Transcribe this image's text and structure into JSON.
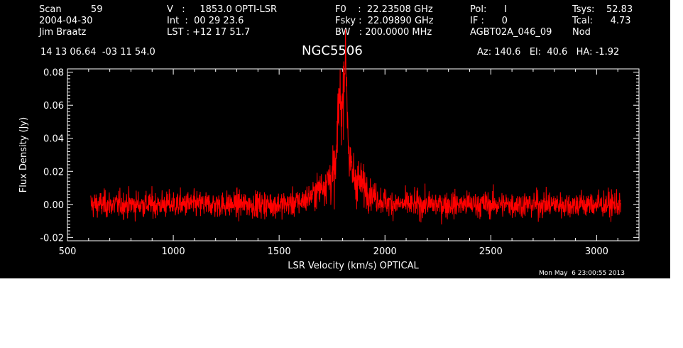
{
  "header": {
    "col1": [
      "Scan          59",
      "2004-04-30",
      "Jim Braatz"
    ],
    "col2": [
      "V   :     1853.0 OPTI-LSR",
      "Int  :  00 29 23.6",
      "LST : +12 17 51.7"
    ],
    "col3": [
      "F0    :  22.23508 GHz",
      "Fsky :  22.09890 GHz",
      "BW   : 200.0000 MHz"
    ],
    "col4": [
      "Pol:      I",
      "IF :      0",
      "AGBT02A_046_09"
    ],
    "col5": [
      "Tsys:    52.83",
      "Tcal:      4.73",
      "Nod"
    ],
    "coords": "14 13 06.64  -03 11 54.0",
    "source": "NGC5506",
    "azel": "Az: 140.6   El:  40.6   HA: -1.92"
  },
  "timestamp": "Mon May  6 23:00:55 2013",
  "colors": {
    "background": "#000000",
    "foreground": "#ffffff",
    "series": "#ff0000"
  },
  "chart_data": {
    "type": "line",
    "title": "NGC5506",
    "xlabel": "LSR Velocity (km/s) OPTICAL",
    "ylabel": "Flux Density (Jy)",
    "xlim": [
      500,
      3200
    ],
    "ylim": [
      -0.022,
      0.082
    ],
    "xticks": [
      500,
      1000,
      1500,
      2000,
      2500,
      3000
    ],
    "xtick_labels": [
      "500",
      "1000",
      "1500",
      "2000",
      "2500",
      "3000"
    ],
    "yticks": [
      -0.02,
      0.0,
      0.02,
      0.04,
      0.06,
      0.08
    ],
    "ytick_labels": [
      "-0.02",
      "0.00",
      "0.02",
      "0.04",
      "0.06",
      "0.08"
    ],
    "grid": false,
    "series": [
      {
        "x_range": [
          610,
          3115
        ],
        "noise_rms": 0.004,
        "features": [
          {
            "center": 1800,
            "width": 90,
            "peak": 0.02
          },
          {
            "center": 1812,
            "width": 10,
            "peak": 0.068
          },
          {
            "center": 1785,
            "width": 8,
            "peak": 0.045
          }
        ]
      }
    ]
  }
}
